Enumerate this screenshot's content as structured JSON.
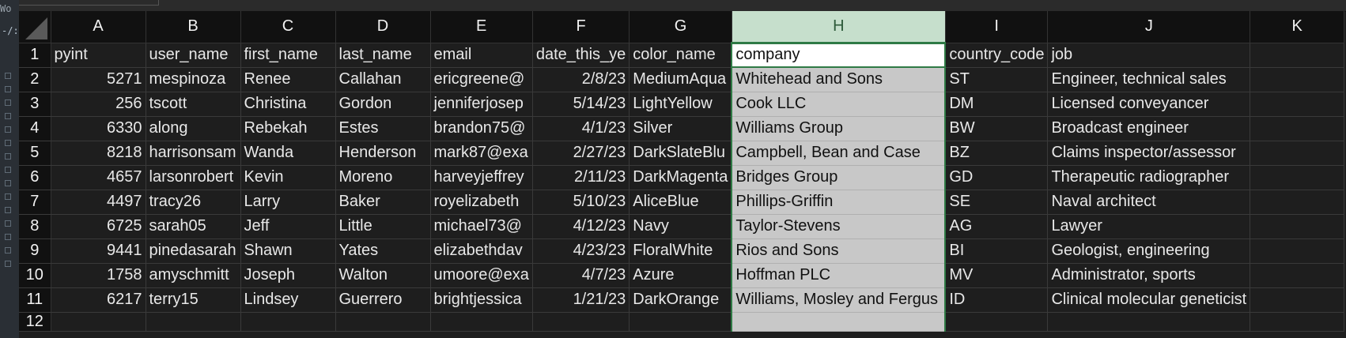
{
  "app": {
    "left_strip_top": "Wo",
    "left_strip_line2": "-/:"
  },
  "columns": [
    "A",
    "B",
    "C",
    "D",
    "E",
    "F",
    "G",
    "H",
    "I",
    "J",
    "K"
  ],
  "row_numbers": [
    "1",
    "2",
    "3",
    "4",
    "5",
    "6",
    "7",
    "8",
    "9",
    "10",
    "11",
    "12"
  ],
  "selected_column": "H",
  "header_row": [
    "pyint",
    "user_name",
    "first_name",
    "last_name",
    "email",
    "date_this_ye",
    "color_name",
    "company",
    "country_code",
    "job",
    ""
  ],
  "rows": [
    [
      "5271",
      "mespinoza",
      "Renee",
      "Callahan",
      "ericgreene@",
      "2/8/23",
      "MediumAqua",
      "Whitehead and Sons",
      "ST",
      "Engineer, technical sales",
      ""
    ],
    [
      "256",
      "tscott",
      "Christina",
      "Gordon",
      "jenniferjosep",
      "5/14/23",
      "LightYellow",
      "Cook LLC",
      "DM",
      "Licensed conveyancer",
      ""
    ],
    [
      "6330",
      "along",
      "Rebekah",
      "Estes",
      "brandon75@",
      "4/1/23",
      "Silver",
      "Williams Group",
      "BW",
      "Broadcast engineer",
      ""
    ],
    [
      "8218",
      "harrisonsam",
      "Wanda",
      "Henderson",
      "mark87@exa",
      "2/27/23",
      "DarkSlateBlu",
      "Campbell, Bean and Case",
      "BZ",
      "Claims inspector/assessor",
      ""
    ],
    [
      "4657",
      "larsonrobert",
      "Kevin",
      "Moreno",
      "harveyjeffrey",
      "2/11/23",
      "DarkMagenta",
      "Bridges Group",
      "GD",
      "Therapeutic radiographer",
      ""
    ],
    [
      "4497",
      "tracy26",
      "Larry",
      "Baker",
      "royelizabeth",
      "5/10/23",
      "AliceBlue",
      "Phillips-Griffin",
      "SE",
      "Naval architect",
      ""
    ],
    [
      "6725",
      "sarah05",
      "Jeff",
      "Little",
      "michael73@",
      "4/12/23",
      "Navy",
      "Taylor-Stevens",
      "AG",
      "Lawyer",
      ""
    ],
    [
      "9441",
      "pinedasarah",
      "Shawn",
      "Yates",
      "elizabethdav",
      "4/23/23",
      "FloralWhite",
      "Rios and Sons",
      "BI",
      "Geologist, engineering",
      ""
    ],
    [
      "1758",
      "amyschmitt",
      "Joseph",
      "Walton",
      "umoore@exa",
      "4/7/23",
      "Azure",
      "Hoffman PLC",
      "MV",
      "Administrator, sports",
      ""
    ],
    [
      "6217",
      "terry15",
      "Lindsey",
      "Guerrero",
      "brightjessica",
      "1/21/23",
      "DarkOrange",
      "Williams, Mosley and Fergus",
      "ID",
      "Clinical molecular geneticist",
      ""
    ]
  ]
}
